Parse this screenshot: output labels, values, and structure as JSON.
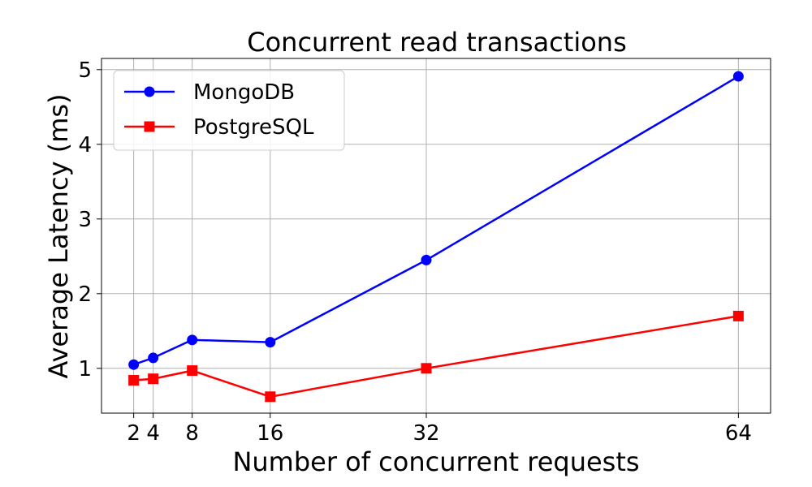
{
  "chart_data": {
    "type": "line",
    "title": "Concurrent read transactions",
    "xlabel": "Number of concurrent requests",
    "ylabel": "Average Latency (ms)",
    "x": [
      2,
      4,
      8,
      16,
      32,
      64
    ],
    "x_ticks": [
      "2",
      "4",
      "8",
      "16",
      "32",
      "64"
    ],
    "y_ticks": [
      "1",
      "2",
      "3",
      "4",
      "5"
    ],
    "xlim": [
      -1.3,
      67.3
    ],
    "ylim": [
      0.4,
      5.15
    ],
    "grid": true,
    "legend_position": "top-left",
    "series": [
      {
        "name": "MongoDB",
        "values": [
          1.05,
          1.14,
          1.38,
          1.35,
          2.45,
          4.91
        ],
        "color": "#0000ff",
        "marker": "circle"
      },
      {
        "name": "PostgreSQL",
        "values": [
          0.84,
          0.86,
          0.97,
          0.62,
          1.0,
          1.7
        ],
        "color": "#ff0000",
        "marker": "square"
      }
    ]
  }
}
